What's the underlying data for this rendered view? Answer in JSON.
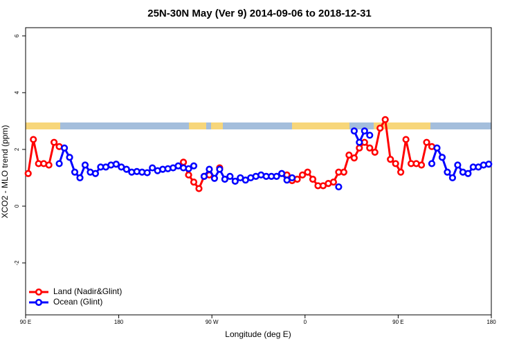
{
  "chart_data": {
    "type": "line",
    "title": "25N-30N May (Ver 9)   2014-09-06 to 2018-12-31",
    "x_label": "Longitude (deg E)",
    "y_label": "XCO2 - MLO trend (ppm)",
    "xlim": [
      90,
      540
    ],
    "ylim": [
      -3.83,
      6.29
    ],
    "xticks": [
      {
        "value": 90,
        "label": "90 E"
      },
      180,
      {
        "value": 270,
        "label": "90 W"
      },
      {
        "value": 360,
        "label": "0"
      },
      {
        "value": 450,
        "label": "90 E"
      },
      {
        "value": 540,
        "label": "180"
      }
    ],
    "yticks": [
      -2,
      0,
      2,
      4,
      6
    ],
    "legend": "bottom-left",
    "x": [
      92.5,
      97.5,
      102.5,
      107.5,
      112.5,
      117.5,
      122.5,
      127.5,
      132.5,
      137.5,
      142.5,
      147.5,
      152.5,
      157.5,
      162.5,
      167.5,
      172.5,
      177.5,
      182.5,
      187.5,
      192.5,
      197.5,
      202.5,
      207.5,
      212.5,
      217.5,
      222.5,
      227.5,
      232.5,
      237.5,
      242.5,
      247.5,
      252.5,
      257.5,
      262.5,
      267.5,
      272.5,
      277.5,
      282.5,
      287.5,
      292.5,
      297.5,
      302.5,
      307.5,
      312.5,
      317.5,
      322.5,
      327.5,
      332.5,
      337.5,
      342.5,
      347.5,
      352.5,
      357.5,
      362.5,
      367.5,
      372.5,
      377.5,
      382.5,
      387.5,
      392.5,
      397.5,
      402.5,
      407.5,
      412.5,
      417.5,
      422.5,
      427.5,
      432.5,
      437.5,
      442.5,
      447.5,
      452.5,
      457.5,
      462.5,
      467.5,
      472.5,
      477.5,
      482.5,
      487.5,
      492.5,
      497.5,
      502.5,
      507.5,
      512.5,
      517.5,
      522.5,
      527.5,
      532.5,
      537.5
    ],
    "series": [
      {
        "name": "Land (Nadir&Glint)",
        "color": "#ff0000",
        "values": [
          1.15,
          2.35,
          1.5,
          1.5,
          1.45,
          2.25,
          2.1,
          null,
          null,
          null,
          null,
          null,
          null,
          null,
          null,
          null,
          null,
          null,
          null,
          null,
          null,
          null,
          null,
          null,
          null,
          null,
          null,
          null,
          null,
          null,
          1.55,
          1.1,
          0.85,
          0.62,
          1.05,
          1.1,
          null,
          1.35,
          null,
          null,
          null,
          null,
          null,
          null,
          null,
          null,
          null,
          null,
          null,
          null,
          1.1,
          0.9,
          0.95,
          1.1,
          1.2,
          0.95,
          0.72,
          0.72,
          0.8,
          0.85,
          1.2,
          1.2,
          1.8,
          1.7,
          2.05,
          2.25,
          2.05,
          1.9,
          2.75,
          3.05,
          1.65,
          1.5,
          1.2,
          2.35,
          1.5,
          1.5,
          1.45,
          2.25,
          2.1,
          null,
          null,
          null,
          null,
          null,
          null,
          null,
          null,
          null,
          null,
          null
        ]
      },
      {
        "name": "Ocean (Glint)",
        "color": "#0000ff",
        "values": [
          null,
          null,
          null,
          null,
          null,
          null,
          1.5,
          2.05,
          1.72,
          1.2,
          1.0,
          1.45,
          1.2,
          1.15,
          1.38,
          1.38,
          1.45,
          1.48,
          1.38,
          1.3,
          1.2,
          1.22,
          1.2,
          1.18,
          1.35,
          1.25,
          1.3,
          1.32,
          1.35,
          1.42,
          1.35,
          1.32,
          1.42,
          null,
          1.05,
          1.3,
          0.98,
          1.3,
          0.95,
          1.05,
          0.88,
          1.0,
          0.92,
          1.0,
          1.05,
          1.1,
          1.05,
          1.05,
          1.05,
          1.15,
          0.92,
          1.0,
          null,
          null,
          null,
          null,
          null,
          null,
          null,
          null,
          0.68,
          null,
          null,
          2.65,
          2.25,
          2.65,
          2.5,
          null,
          null,
          null,
          null,
          null,
          null,
          null,
          null,
          null,
          null,
          null,
          1.5,
          2.05,
          1.72,
          1.2,
          1.0,
          1.45,
          1.2,
          1.15,
          1.38,
          1.38,
          1.45,
          1.48
        ]
      }
    ]
  }
}
